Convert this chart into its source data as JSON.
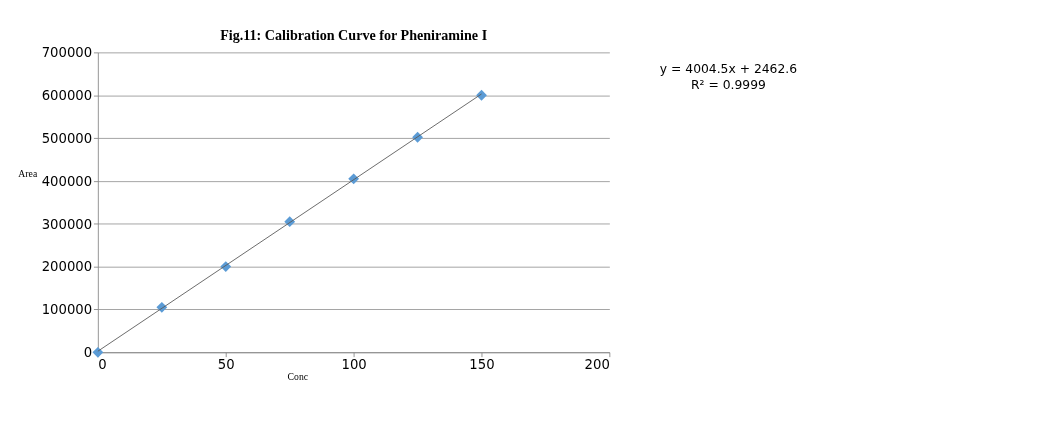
{
  "chart_data": {
    "type": "scatter",
    "title": "Fig.11: Calibration Curve for Pheniramine I",
    "xlabel": "Conc",
    "ylabel": "Area",
    "x": [
      0,
      25,
      50,
      75,
      100,
      125,
      150
    ],
    "series": [
      {
        "color": "#5b9bd5",
        "marker": "diamond",
        "values": [
          0,
          105000,
          200000,
          305000,
          405000,
          502000,
          600000
        ]
      },
      {
        "type": "line",
        "color": "#595959",
        "x": [
          0,
          150
        ],
        "marker": "none",
        "values": [
          2500,
          603000
        ]
      }
    ],
    "annotations": [
      "y = 4004.5x + 2462.6",
      "R² = 0.9999"
    ],
    "xlim": [
      0,
      200
    ],
    "xticks": [
      0,
      50,
      100,
      150,
      200
    ],
    "ylim": [
      0,
      700000
    ],
    "yticks": [
      0,
      100000,
      200000,
      300000,
      400000,
      500000,
      600000,
      700000
    ],
    "grid": "y"
  }
}
